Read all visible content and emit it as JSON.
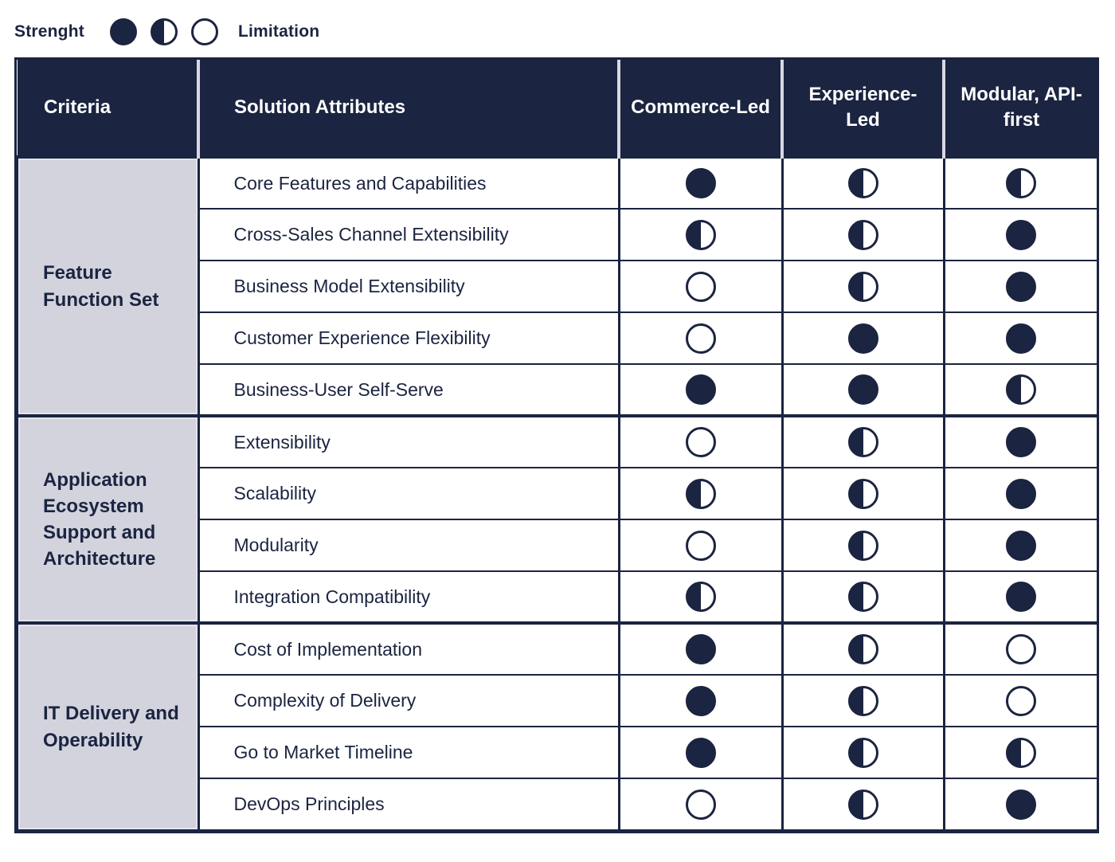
{
  "colors": {
    "navy": "#1b2440",
    "lavender": "#d2d3dd",
    "header_separator": "#d8d9e2",
    "white": "#ffffff"
  },
  "legend": {
    "strength_label": "Strenght",
    "limitation_label": "Limitation",
    "symbols": [
      "strength",
      "partial",
      "limitation"
    ]
  },
  "table": {
    "headers": {
      "criteria": "Criteria",
      "attributes": "Solution Attributes",
      "columns": [
        "Commerce-Led",
        "Experience-Led",
        "Modular, API-first"
      ]
    },
    "sections": [
      {
        "criteria": "Feature Function Set",
        "rows": [
          {
            "label": "Core Features and Capabilities",
            "ratings": [
              "strength",
              "partial",
              "partial"
            ]
          },
          {
            "label": "Cross-Sales Channel Extensibility",
            "ratings": [
              "partial",
              "partial",
              "strength"
            ]
          },
          {
            "label": "Business Model Extensibility",
            "ratings": [
              "limitation",
              "partial",
              "strength"
            ]
          },
          {
            "label": "Customer Experience Flexibility",
            "ratings": [
              "limitation",
              "strength",
              "strength"
            ]
          },
          {
            "label": "Business-User Self-Serve",
            "ratings": [
              "strength",
              "strength",
              "partial"
            ]
          }
        ]
      },
      {
        "criteria": "Application Ecosystem Support and Architecture",
        "rows": [
          {
            "label": "Extensibility",
            "ratings": [
              "limitation",
              "partial",
              "strength"
            ]
          },
          {
            "label": "Scalability",
            "ratings": [
              "partial",
              "partial",
              "strength"
            ]
          },
          {
            "label": "Modularity",
            "ratings": [
              "limitation",
              "partial",
              "strength"
            ]
          },
          {
            "label": "Integration Compatibility",
            "ratings": [
              "partial",
              "partial",
              "strength"
            ]
          }
        ]
      },
      {
        "criteria": "IT Delivery and Operability",
        "rows": [
          {
            "label": "Cost of Implementation",
            "ratings": [
              "strength",
              "partial",
              "limitation"
            ]
          },
          {
            "label": "Complexity of Delivery",
            "ratings": [
              "strength",
              "partial",
              "limitation"
            ]
          },
          {
            "label": "Go to Market Timeline",
            "ratings": [
              "strength",
              "partial",
              "partial"
            ]
          },
          {
            "label": "DevOps Principles",
            "ratings": [
              "limitation",
              "partial",
              "strength"
            ]
          }
        ]
      }
    ]
  },
  "chart_data": {
    "type": "table",
    "title": "Solution approach comparison matrix",
    "legend": {
      "strength": "filled circle",
      "partial": "half-filled circle",
      "limitation": "empty circle"
    },
    "columns": [
      "Commerce-Led",
      "Experience-Led",
      "Modular, API-first"
    ],
    "rows": [
      {
        "section": "Feature Function Set",
        "attribute": "Core Features and Capabilities",
        "values": [
          "strength",
          "partial",
          "partial"
        ]
      },
      {
        "section": "Feature Function Set",
        "attribute": "Cross-Sales Channel Extensibility",
        "values": [
          "partial",
          "partial",
          "strength"
        ]
      },
      {
        "section": "Feature Function Set",
        "attribute": "Business Model Extensibility",
        "values": [
          "limitation",
          "partial",
          "strength"
        ]
      },
      {
        "section": "Feature Function Set",
        "attribute": "Customer Experience Flexibility",
        "values": [
          "limitation",
          "strength",
          "strength"
        ]
      },
      {
        "section": "Feature Function Set",
        "attribute": "Business-User Self-Serve",
        "values": [
          "strength",
          "strength",
          "partial"
        ]
      },
      {
        "section": "Application Ecosystem Support and Architecture",
        "attribute": "Extensibility",
        "values": [
          "limitation",
          "partial",
          "strength"
        ]
      },
      {
        "section": "Application Ecosystem Support and Architecture",
        "attribute": "Scalability",
        "values": [
          "partial",
          "partial",
          "strength"
        ]
      },
      {
        "section": "Application Ecosystem Support and Architecture",
        "attribute": "Modularity",
        "values": [
          "limitation",
          "partial",
          "strength"
        ]
      },
      {
        "section": "Application Ecosystem Support and Architecture",
        "attribute": "Integration Compatibility",
        "values": [
          "partial",
          "partial",
          "strength"
        ]
      },
      {
        "section": "IT Delivery and Operability",
        "attribute": "Cost of Implementation",
        "values": [
          "strength",
          "partial",
          "limitation"
        ]
      },
      {
        "section": "IT Delivery and Operability",
        "attribute": "Complexity of Delivery",
        "values": [
          "strength",
          "partial",
          "limitation"
        ]
      },
      {
        "section": "IT Delivery and Operability",
        "attribute": "Go to Market Timeline",
        "values": [
          "strength",
          "partial",
          "partial"
        ]
      },
      {
        "section": "IT Delivery and Operability",
        "attribute": "DevOps Principles",
        "values": [
          "limitation",
          "partial",
          "strength"
        ]
      }
    ]
  }
}
